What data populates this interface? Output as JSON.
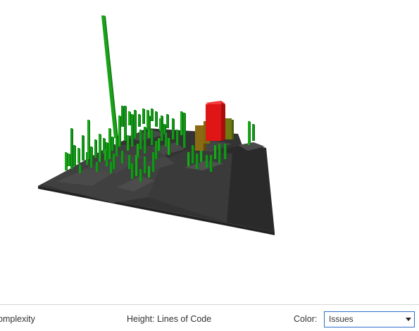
{
  "controls": {
    "footprint_label": "Complexity",
    "height_label": "Height: Lines of Code",
    "color_caption": "Color:",
    "color_selected": "Issues"
  },
  "colors": {
    "good": "#17a317",
    "medium": "#8a6a12",
    "bad": "#e01515",
    "platform_dark": "#2e2e2e",
    "platform_mid": "#3c3c3c",
    "block": "#4a4a4a"
  },
  "city": {
    "buildings": [
      {
        "status": "good",
        "height_pct": 100
      },
      {
        "status": "good",
        "height_pct": 24
      },
      {
        "status": "good",
        "height_pct": 18
      },
      {
        "status": "good",
        "height_pct": 14
      },
      {
        "status": "good",
        "height_pct": 12
      },
      {
        "status": "good",
        "height_pct": 20
      },
      {
        "status": "good",
        "height_pct": 16
      },
      {
        "status": "good",
        "height_pct": 10
      },
      {
        "status": "medium",
        "height_pct": 17
      },
      {
        "status": "bad",
        "height_pct": 22
      },
      {
        "status": "medium",
        "height_pct": 13
      },
      {
        "status": "good",
        "height_pct": 15
      }
    ]
  }
}
